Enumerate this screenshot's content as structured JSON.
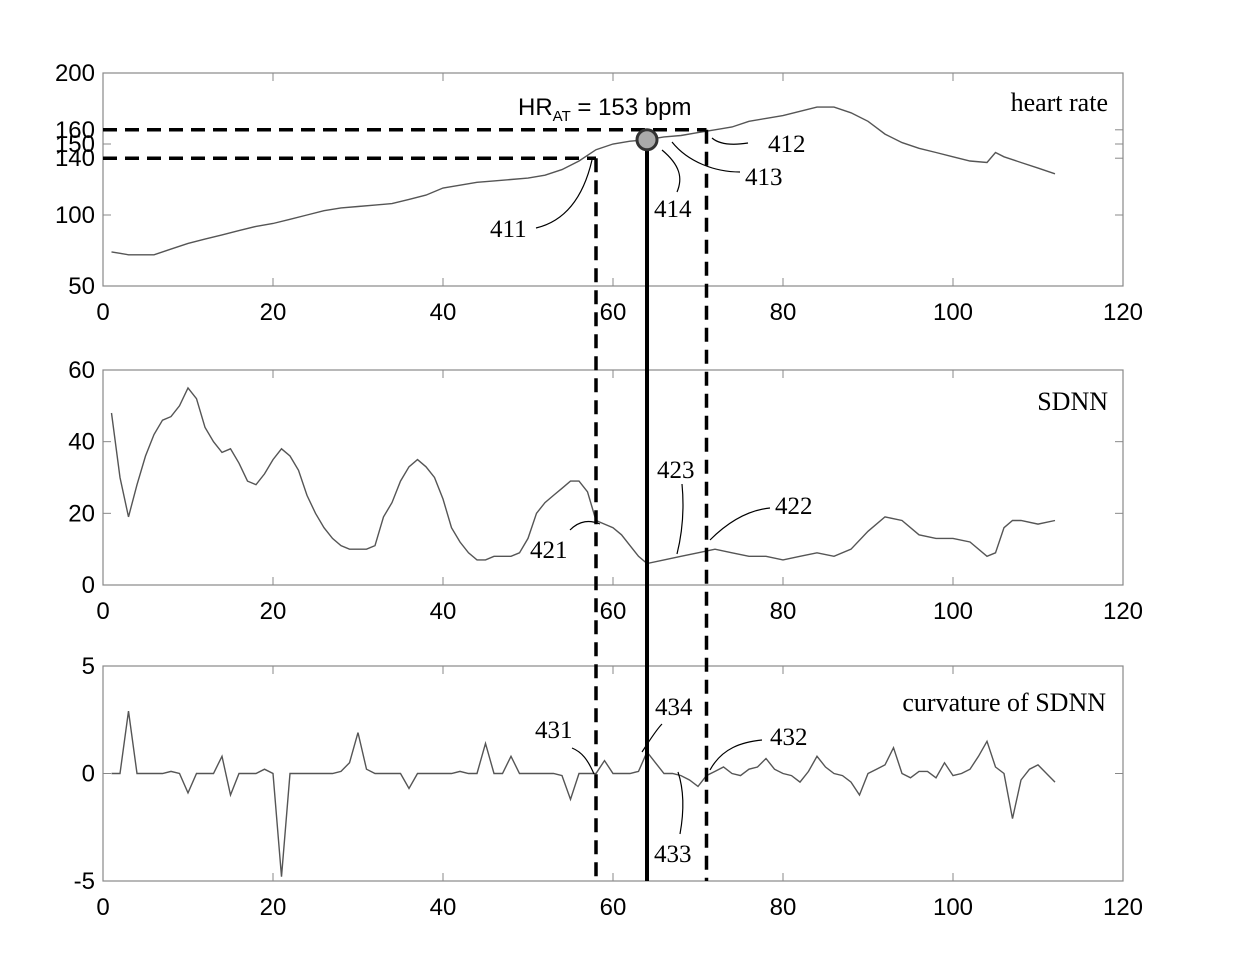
{
  "chart_data": [
    {
      "type": "line",
      "panel_label": "heart rate",
      "xlim": [
        0,
        120
      ],
      "ylim": [
        50,
        200
      ],
      "x_ticks": [
        "0",
        "20",
        "40",
        "60",
        "80",
        "100",
        "120"
      ],
      "y_ticks": [
        {
          "value": 50,
          "label": "50"
        },
        {
          "value": 100,
          "label": "100"
        },
        {
          "value": 140,
          "label": "140"
        },
        {
          "value": 150,
          "label": "150"
        },
        {
          "value": 160,
          "label": "160"
        },
        {
          "value": 200,
          "label": "200"
        }
      ],
      "x": [
        1,
        2,
        3,
        4,
        5,
        6,
        8,
        10,
        12,
        14,
        16,
        18,
        20,
        22,
        24,
        26,
        28,
        30,
        32,
        34,
        36,
        38,
        40,
        42,
        44,
        46,
        48,
        50,
        52,
        54,
        56,
        58,
        60,
        62,
        64,
        66,
        68,
        70,
        72,
        74,
        76,
        78,
        80,
        82,
        84,
        86,
        88,
        90,
        92,
        94,
        96,
        98,
        100,
        102,
        104,
        105,
        106,
        108,
        110,
        112
      ],
      "y": [
        74,
        73,
        72,
        72,
        72,
        72,
        76,
        80,
        83,
        86,
        89,
        92,
        94,
        97,
        100,
        103,
        105,
        106,
        107,
        108,
        111,
        114,
        119,
        121,
        123,
        124,
        125,
        126,
        128,
        132,
        138,
        146,
        150,
        152,
        153,
        155,
        156,
        158,
        160,
        162,
        166,
        168,
        170,
        173,
        176,
        176,
        172,
        166,
        157,
        151,
        147,
        144,
        141,
        138,
        137,
        144,
        141,
        137,
        133,
        129
      ],
      "annotations": {
        "title_text": "HR",
        "title_sub": "AT",
        "title_rest": " = 153 bpm",
        "callouts": [
          "411",
          "412",
          "413",
          "414"
        ]
      }
    },
    {
      "type": "line",
      "panel_label": "SDNN",
      "xlim": [
        0,
        120
      ],
      "ylim": [
        0,
        60
      ],
      "x_ticks": [
        "0",
        "20",
        "40",
        "60",
        "80",
        "100",
        "120"
      ],
      "y_ticks": [
        {
          "value": 0,
          "label": "0"
        },
        {
          "value": 20,
          "label": "20"
        },
        {
          "value": 40,
          "label": "40"
        },
        {
          "value": 60,
          "label": "60"
        }
      ],
      "x": [
        1,
        2,
        3,
        4,
        5,
        6,
        7,
        8,
        9,
        10,
        11,
        12,
        13,
        14,
        15,
        16,
        17,
        18,
        19,
        20,
        21,
        22,
        23,
        24,
        25,
        26,
        27,
        28,
        29,
        30,
        31,
        32,
        33,
        34,
        35,
        36,
        37,
        38,
        39,
        40,
        41,
        42,
        43,
        44,
        45,
        46,
        47,
        48,
        49,
        50,
        51,
        52,
        53,
        54,
        55,
        56,
        57,
        58,
        59,
        60,
        61,
        62,
        63,
        64,
        66,
        68,
        70,
        72,
        74,
        76,
        78,
        80,
        82,
        84,
        86,
        88,
        90,
        92,
        94,
        96,
        98,
        100,
        102,
        104,
        105,
        106,
        107,
        108,
        110,
        112
      ],
      "y": [
        48,
        30,
        19,
        28,
        36,
        42,
        46,
        47,
        50,
        55,
        52,
        44,
        40,
        37,
        38,
        34,
        29,
        28,
        31,
        35,
        38,
        36,
        32,
        25,
        20,
        16,
        13,
        11,
        10,
        10,
        10,
        11,
        19,
        23,
        29,
        33,
        35,
        33,
        30,
        24,
        16,
        12,
        9,
        7,
        7,
        8,
        8,
        8,
        9,
        13,
        20,
        23,
        25,
        27,
        29,
        29,
        26,
        18,
        17,
        16,
        14,
        11,
        8,
        6,
        7,
        8,
        9,
        10,
        9,
        8,
        8,
        7,
        8,
        9,
        8,
        10,
        15,
        19,
        18,
        14,
        13,
        13,
        12,
        8,
        9,
        16,
        18,
        18,
        17,
        18
      ],
      "annotations": {
        "callouts": [
          "421",
          "422",
          "423"
        ]
      }
    },
    {
      "type": "line",
      "panel_label": "curvature of SDNN",
      "xlim": [
        0,
        120
      ],
      "ylim": [
        -5,
        5
      ],
      "x_ticks": [
        "0",
        "20",
        "40",
        "60",
        "80",
        "100",
        "120"
      ],
      "y_ticks": [
        {
          "value": -5,
          "label": "-5"
        },
        {
          "value": 0,
          "label": "0"
        },
        {
          "value": 5,
          "label": "5"
        }
      ],
      "x": [
        1,
        2,
        3,
        4,
        5,
        6,
        7,
        8,
        9,
        10,
        11,
        12,
        13,
        14,
        15,
        16,
        17,
        18,
        19,
        20,
        21,
        22,
        23,
        24,
        25,
        26,
        27,
        28,
        29,
        30,
        31,
        32,
        33,
        34,
        35,
        36,
        37,
        38,
        39,
        40,
        41,
        42,
        43,
        44,
        45,
        46,
        47,
        48,
        49,
        50,
        51,
        52,
        53,
        54,
        55,
        56,
        57,
        58,
        59,
        60,
        61,
        62,
        63,
        64,
        65,
        66,
        67,
        68,
        69,
        70,
        71,
        72,
        73,
        74,
        75,
        76,
        77,
        78,
        79,
        80,
        81,
        82,
        83,
        84,
        85,
        86,
        87,
        88,
        89,
        90,
        91,
        92,
        93,
        94,
        95,
        96,
        97,
        98,
        99,
        100,
        101,
        102,
        103,
        104,
        105,
        106,
        107,
        108,
        109,
        110,
        111,
        112
      ],
      "y": [
        0,
        0,
        2.9,
        0,
        0,
        0,
        0,
        0.1,
        0,
        -0.9,
        0,
        0,
        0,
        0.8,
        -1,
        0,
        0,
        0,
        0.2,
        0,
        -4.8,
        0,
        0,
        0,
        0,
        0,
        0,
        0.1,
        0.5,
        1.9,
        0.2,
        0,
        0,
        0,
        0,
        -0.7,
        0,
        0,
        0,
        0,
        0,
        0.1,
        0,
        0,
        1.4,
        0,
        0,
        0.8,
        0,
        0,
        0,
        0,
        0,
        -0.1,
        -1.2,
        0,
        0,
        0,
        0.6,
        0,
        0,
        0,
        0.1,
        1.0,
        0.5,
        0,
        0,
        -0.1,
        -0.3,
        -0.6,
        -0.1,
        0.1,
        0.3,
        0,
        -0.1,
        0.2,
        0.3,
        0.7,
        0.2,
        0,
        -0.1,
        -0.4,
        0.1,
        0.8,
        0.3,
        0,
        -0.1,
        -0.4,
        -1.0,
        0,
        0.2,
        0.4,
        1.2,
        0,
        -0.2,
        0.1,
        0.1,
        -0.2,
        0.5,
        -0.1,
        0,
        0.2,
        0.8,
        1.5,
        0.3,
        0,
        -2.1,
        -0.3,
        0.2,
        0.4,
        0,
        -0.4
      ],
      "annotations": {
        "callouts": [
          "431",
          "432",
          "433",
          "434"
        ]
      }
    }
  ],
  "markers": {
    "dashed_x": [
      58,
      71
    ],
    "solid_x": 64,
    "hr_at_point": {
      "x": 64,
      "y": 153
    },
    "dashed_y": [
      140,
      160
    ]
  }
}
